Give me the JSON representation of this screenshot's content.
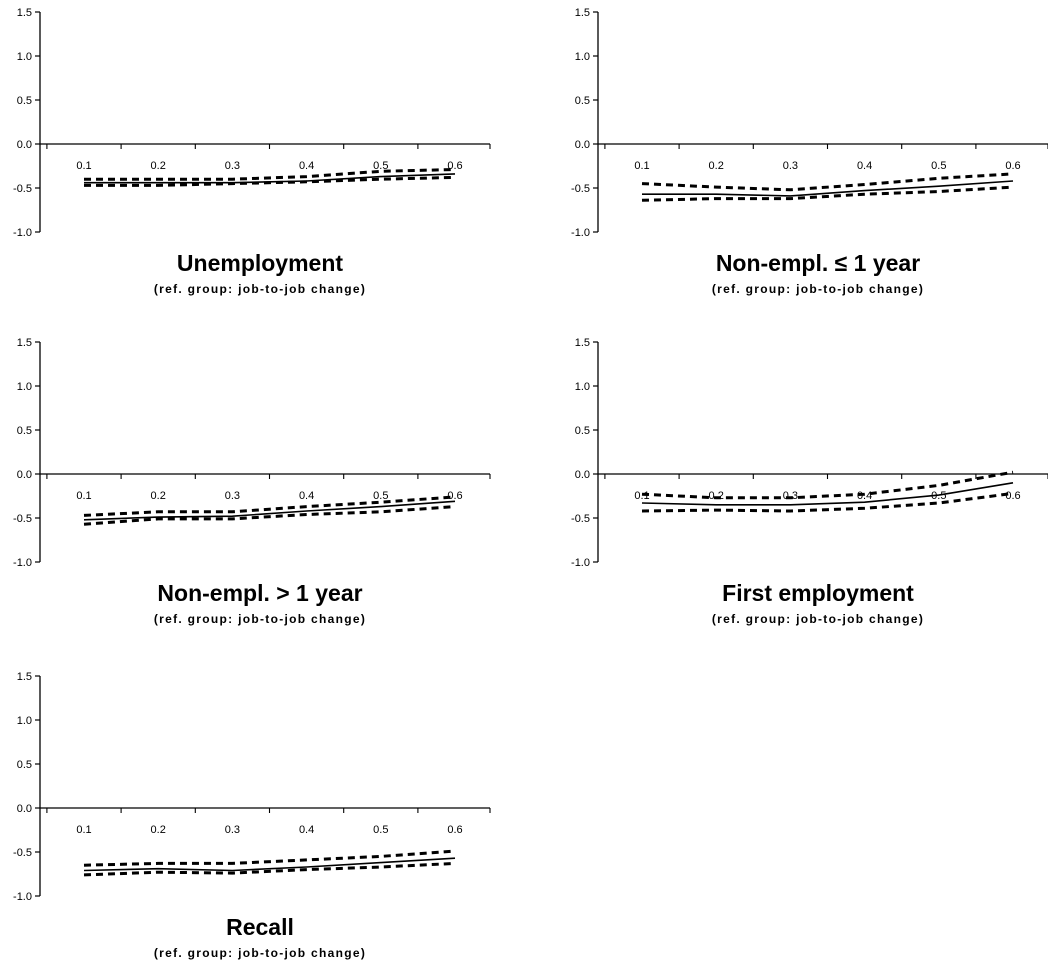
{
  "chart_data": [
    {
      "type": "line",
      "title": "Unemployment",
      "subtitle": "(ref. group: job-to-job change)",
      "x": [
        0.1,
        0.2,
        0.3,
        0.4,
        0.5,
        0.6
      ],
      "xticks": [
        "0.1",
        "0.2",
        "0.3",
        "0.4",
        "0.5",
        "0.6"
      ],
      "yticks": [
        "1.5",
        "1.0",
        "0.5",
        "0.0",
        "-0.5",
        "-1.0"
      ],
      "ylim": [
        -1.0,
        1.5
      ],
      "series": [
        {
          "style": "solid",
          "values": [
            -0.44,
            -0.44,
            -0.44,
            -0.42,
            -0.37,
            -0.34
          ]
        },
        {
          "style": "dashed",
          "values": [
            -0.4,
            -0.4,
            -0.4,
            -0.37,
            -0.31,
            -0.29
          ]
        },
        {
          "style": "dashed",
          "values": [
            -0.47,
            -0.47,
            -0.45,
            -0.43,
            -0.4,
            -0.38
          ]
        }
      ]
    },
    {
      "type": "line",
      "title": "Non-empl. ≤ 1 year",
      "subtitle": "(ref. group: job-to-job change)",
      "x": [
        0.1,
        0.2,
        0.3,
        0.4,
        0.5,
        0.6
      ],
      "xticks": [
        "0.1",
        "0.2",
        "0.3",
        "0.4",
        "0.5",
        "0.6"
      ],
      "yticks": [
        "1.5",
        "1.0",
        "0.5",
        "0.0",
        "-0.5",
        "-1.0"
      ],
      "ylim": [
        -1.0,
        1.5
      ],
      "series": [
        {
          "style": "solid",
          "values": [
            -0.57,
            -0.57,
            -0.59,
            -0.53,
            -0.48,
            -0.42
          ]
        },
        {
          "style": "dashed",
          "values": [
            -0.45,
            -0.49,
            -0.52,
            -0.46,
            -0.39,
            -0.34
          ]
        },
        {
          "style": "dashed",
          "values": [
            -0.64,
            -0.62,
            -0.62,
            -0.57,
            -0.54,
            -0.49
          ]
        }
      ]
    },
    {
      "type": "line",
      "title": "Non-empl. > 1 year",
      "subtitle": "(ref. group: job-to-job change)",
      "x": [
        0.1,
        0.2,
        0.3,
        0.4,
        0.5,
        0.6
      ],
      "xticks": [
        "0.1",
        "0.2",
        "0.3",
        "0.4",
        "0.5",
        "0.6"
      ],
      "yticks": [
        "1.5",
        "1.0",
        "0.5",
        "0.0",
        "-0.5",
        "-1.0"
      ],
      "ylim": [
        -1.0,
        1.5
      ],
      "series": [
        {
          "style": "solid",
          "values": [
            -0.52,
            -0.49,
            -0.48,
            -0.42,
            -0.37,
            -0.31
          ]
        },
        {
          "style": "dashed",
          "values": [
            -0.47,
            -0.43,
            -0.43,
            -0.37,
            -0.32,
            -0.26
          ]
        },
        {
          "style": "dashed",
          "values": [
            -0.57,
            -0.51,
            -0.51,
            -0.46,
            -0.43,
            -0.37
          ]
        }
      ]
    },
    {
      "type": "line",
      "title": "First employment",
      "subtitle": "(ref. group: job-to-job change)",
      "x": [
        0.1,
        0.2,
        0.3,
        0.4,
        0.5,
        0.6
      ],
      "xticks": [
        "0.1",
        "0.2",
        "0.3",
        "0.4",
        "0.5",
        "0.6"
      ],
      "yticks": [
        "1.5",
        "1.0",
        "0.5",
        "0.0",
        "-0.5",
        "-1.0"
      ],
      "ylim": [
        -1.0,
        1.5
      ],
      "series": [
        {
          "style": "solid",
          "values": [
            -0.33,
            -0.35,
            -0.35,
            -0.32,
            -0.24,
            -0.1
          ]
        },
        {
          "style": "dashed",
          "values": [
            -0.23,
            -0.27,
            -0.27,
            -0.23,
            -0.13,
            0.02
          ]
        },
        {
          "style": "dashed",
          "values": [
            -0.42,
            -0.41,
            -0.42,
            -0.39,
            -0.33,
            -0.22
          ]
        }
      ]
    },
    {
      "type": "line",
      "title": "Recall",
      "subtitle": "(ref. group: job-to-job change)",
      "x": [
        0.1,
        0.2,
        0.3,
        0.4,
        0.5,
        0.6
      ],
      "xticks": [
        "0.1",
        "0.2",
        "0.3",
        "0.4",
        "0.5",
        "0.6"
      ],
      "yticks": [
        "1.5",
        "1.0",
        "0.5",
        "0.0",
        "-0.5",
        "-1.0"
      ],
      "ylim": [
        -1.0,
        1.5
      ],
      "series": [
        {
          "style": "solid",
          "values": [
            -0.71,
            -0.69,
            -0.71,
            -0.67,
            -0.62,
            -0.57
          ]
        },
        {
          "style": "dashed",
          "values": [
            -0.65,
            -0.63,
            -0.63,
            -0.59,
            -0.55,
            -0.49
          ]
        },
        {
          "style": "dashed",
          "values": [
            -0.76,
            -0.73,
            -0.74,
            -0.7,
            -0.67,
            -0.63
          ]
        }
      ]
    }
  ]
}
